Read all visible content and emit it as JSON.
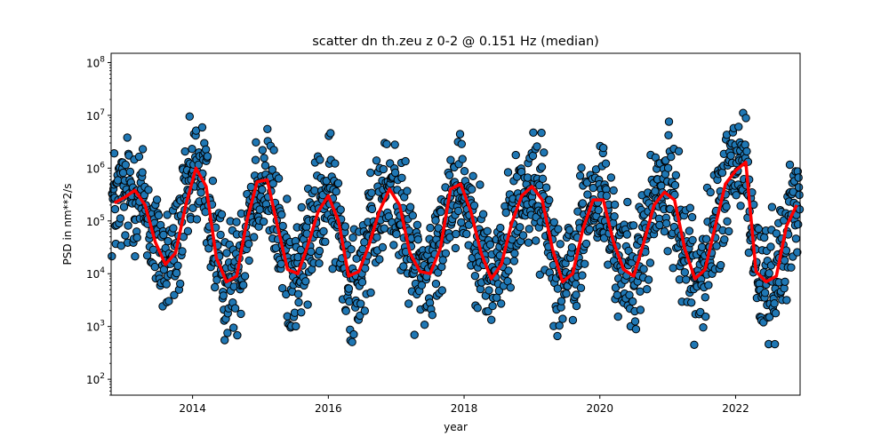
{
  "chart_data": {
    "type": "scatter",
    "title": "scatter dn th.zeu z 0-2 @ 0.151 Hz (median)",
    "xlabel": "year",
    "ylabel": "PSD in nm**2/s",
    "xlim": [
      2012.8,
      2022.95
    ],
    "ylim": [
      50,
      150000000
    ],
    "yscale": "log",
    "grid": false,
    "x_ticks": [
      2014,
      2016,
      2018,
      2020,
      2022
    ],
    "x_tick_labels": [
      "2014",
      "2016",
      "2018",
      "2020",
      "2022"
    ],
    "y_ticks": [
      100,
      1000,
      10000,
      100000,
      1000000,
      10000000,
      100000000
    ],
    "y_tick_exponents": [
      "2",
      "3",
      "4",
      "5",
      "6",
      "7",
      "8"
    ],
    "scatter_color": "#1f77b4",
    "scatter_edge_color": "#000000",
    "median_color": "#ff0000",
    "series": [
      {
        "kind": "median",
        "x": [
          2012.85,
          2013.0,
          2013.15,
          2013.3,
          2013.45,
          2013.6,
          2013.75,
          2013.9,
          2014.05,
          2014.2,
          2014.35,
          2014.5,
          2014.65,
          2014.8,
          2014.95,
          2015.1,
          2015.25,
          2015.4,
          2015.55,
          2015.7,
          2015.85,
          2016.0,
          2016.15,
          2016.3,
          2016.45,
          2016.6,
          2016.75,
          2016.9,
          2017.05,
          2017.2,
          2017.35,
          2017.5,
          2017.65,
          2017.8,
          2017.95,
          2018.1,
          2018.25,
          2018.4,
          2018.55,
          2018.7,
          2018.85,
          2019.0,
          2019.15,
          2019.3,
          2019.45,
          2019.6,
          2019.75,
          2019.9,
          2020.05,
          2020.2,
          2020.35,
          2020.5,
          2020.65,
          2020.8,
          2020.95,
          2021.1,
          2021.25,
          2021.4,
          2021.55,
          2021.7,
          2021.85,
          2022.0,
          2022.15,
          2022.3,
          2022.45,
          2022.6,
          2022.75,
          2022.9
        ],
        "y": [
          220000,
          280000,
          380000,
          200000,
          40000,
          15000,
          25000,
          200000,
          1000000,
          450000,
          20000,
          7000,
          9000,
          100000,
          550000,
          600000,
          80000,
          12000,
          10000,
          35000,
          150000,
          300000,
          100000,
          9000,
          11000,
          35000,
          150000,
          400000,
          200000,
          25000,
          11000,
          10000,
          30000,
          400000,
          500000,
          150000,
          25000,
          8000,
          15000,
          90000,
          300000,
          450000,
          250000,
          30000,
          7000,
          10000,
          70000,
          250000,
          250000,
          40000,
          12000,
          9000,
          40000,
          200000,
          350000,
          250000,
          30000,
          8000,
          12000,
          80000,
          500000,
          900000,
          1300000,
          11000,
          7000,
          9000,
          80000,
          200000
        ]
      }
    ]
  }
}
